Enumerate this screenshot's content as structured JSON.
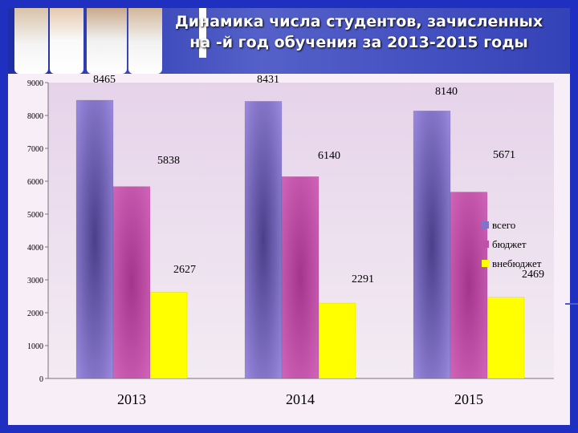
{
  "title": {
    "line1": "Динамика числа студентов, зачисленных",
    "line2": "на -й год обучения за 2013-2015 годы"
  },
  "colors": {
    "frame": "#1f2fbf",
    "plot_bg": "#ecdcec",
    "series": [
      "#8a78d6",
      "#c24fa8",
      "#ffff00"
    ]
  },
  "chart_data": {
    "type": "bar",
    "categories": [
      "2013",
      "2014",
      "2015"
    ],
    "series": [
      {
        "name": "всего",
        "values": [
          8465,
          8431,
          8140
        ]
      },
      {
        "name": "бюджет",
        "values": [
          5838,
          6140,
          5671
        ]
      },
      {
        "name": "внебюджет",
        "values": [
          2627,
          2291,
          2469
        ]
      }
    ],
    "data_labels": [
      [
        "8465",
        "5838",
        "2627"
      ],
      [
        "8431",
        "6140",
        "2291"
      ],
      [
        "8140",
        "5671",
        "2469"
      ]
    ],
    "yticks": [
      "0",
      "1000",
      "2000",
      "3000",
      "4000",
      "5000",
      "6000",
      "7000",
      "8000",
      "9000"
    ],
    "ylim": [
      0,
      9000
    ],
    "legend_position": "right",
    "grid": false
  }
}
